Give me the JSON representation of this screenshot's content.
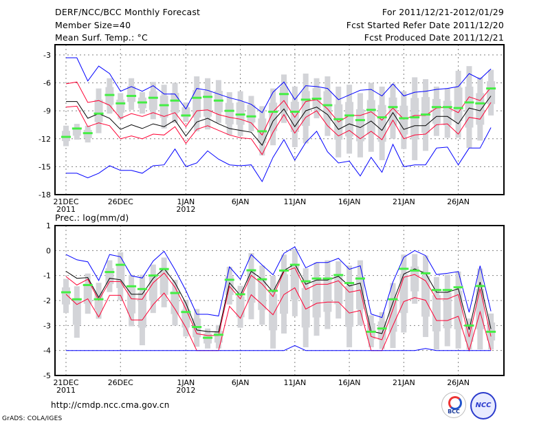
{
  "header": {
    "title": "DERF/NCC/BCC Monthly Forecast",
    "member_size": "Member Size=40",
    "variable": "Mean Surf. Temp.: °C",
    "period": "For 2011/12/21-2012/01/29",
    "started": "Fcst Started Refer Date 2011/12/20",
    "produced": "Fcst Produced Date 2011/12/21"
  },
  "footer": {
    "url": "http://cmdp.ncc.cma.gov.cn",
    "credit": "GrADS: COLA/IGES",
    "logo_bcc": "BCC",
    "logo_ncc": "NCC"
  },
  "colors": {
    "envelope": "#0000ff",
    "spread": "#ff0033",
    "mean": "#000000",
    "member_mean": "#44ee44",
    "box": "#d3d4d8",
    "grid": "#808080"
  },
  "chart_data": [
    {
      "type": "line",
      "title": "Mean Surf. Temp.: °C",
      "xlabel": "",
      "ylabel": "",
      "x_days": 40,
      "xticks": [
        {
          "day": 0,
          "label": "21DEC",
          "sub": "2011"
        },
        {
          "day": 5,
          "label": "26DEC"
        },
        {
          "day": 11,
          "label": "1JAN",
          "sub": "2012"
        },
        {
          "day": 16,
          "label": "6JAN"
        },
        {
          "day": 21,
          "label": "11JAN"
        },
        {
          "day": 26,
          "label": "16JAN"
        },
        {
          "day": 31,
          "label": "21JAN"
        },
        {
          "day": 36,
          "label": "26JAN"
        }
      ],
      "yticks": [
        -3,
        -6,
        -9,
        -12,
        -15,
        -18
      ],
      "ylim": [
        -18,
        -1.9
      ],
      "grid": true,
      "series": [
        {
          "name": "max",
          "color": "#0000ff",
          "values": [
            -3.3,
            -3.3,
            -5.8,
            -4.2,
            -5.0,
            -6.9,
            -6.4,
            -6.9,
            -6.3,
            -7.2,
            -7.2,
            -8.8,
            -6.6,
            -6.8,
            -7.2,
            -7.6,
            -7.9,
            -8.3,
            -9.2,
            -7.0,
            -5.9,
            -7.8,
            -6.3,
            -6.4,
            -6.6,
            -7.8,
            -7.3,
            -6.8,
            -6.7,
            -7.4,
            -6.1,
            -7.4,
            -7.0,
            -6.9,
            -6.7,
            -6.6,
            -6.4,
            -5.0,
            -5.6,
            -4.5
          ]
        },
        {
          "name": "upper",
          "color": "#ff0033",
          "values": [
            -6.1,
            -5.9,
            -8.1,
            -7.9,
            -8.4,
            -9.8,
            -9.3,
            -9.6,
            -9.2,
            -9.6,
            -9.2,
            -10.7,
            -9.0,
            -8.9,
            -9.4,
            -9.7,
            -9.9,
            -10.3,
            -11.6,
            -9.1,
            -7.9,
            -9.7,
            -8.0,
            -7.8,
            -8.8,
            -10.2,
            -9.5,
            -9.5,
            -9.1,
            -10.0,
            -8.7,
            -9.9,
            -9.5,
            -9.5,
            -8.7,
            -8.6,
            -9.2,
            -7.5,
            -7.9,
            -6.5
          ]
        },
        {
          "name": "mean",
          "color": "#000000",
          "values": [
            -8.0,
            -8.0,
            -9.8,
            -9.3,
            -9.8,
            -11.0,
            -10.5,
            -10.9,
            -10.4,
            -10.7,
            -10.0,
            -11.7,
            -10.2,
            -9.8,
            -10.4,
            -10.9,
            -11.1,
            -11.3,
            -12.7,
            -10.1,
            -8.8,
            -10.7,
            -9.0,
            -8.6,
            -9.4,
            -11.0,
            -10.4,
            -10.8,
            -10.1,
            -11.1,
            -9.2,
            -11.0,
            -10.6,
            -10.6,
            -9.6,
            -9.6,
            -10.4,
            -8.7,
            -9.0,
            -7.4
          ]
        },
        {
          "name": "lower",
          "color": "#ff0033",
          "values": [
            -8.6,
            -8.5,
            -10.7,
            -10.3,
            -10.6,
            -12.0,
            -11.7,
            -12.0,
            -11.5,
            -11.6,
            -10.7,
            -12.5,
            -11.0,
            -10.6,
            -11.1,
            -11.6,
            -11.9,
            -12.0,
            -13.7,
            -11.3,
            -9.4,
            -11.4,
            -9.7,
            -9.0,
            -10.6,
            -11.7,
            -11.1,
            -12.0,
            -11.2,
            -12.1,
            -10.0,
            -12.0,
            -11.6,
            -11.5,
            -10.5,
            -10.4,
            -11.5,
            -9.7,
            -9.9,
            -8.1
          ]
        },
        {
          "name": "min",
          "color": "#0000ff",
          "values": [
            -15.7,
            -15.7,
            -16.2,
            -15.7,
            -14.9,
            -15.4,
            -15.4,
            -15.7,
            -14.9,
            -14.8,
            -13.1,
            -15.0,
            -14.6,
            -13.3,
            -14.2,
            -14.8,
            -14.9,
            -14.8,
            -16.6,
            -14.0,
            -12.1,
            -14.3,
            -12.4,
            -11.2,
            -13.4,
            -14.6,
            -14.4,
            -16.0,
            -14.0,
            -15.6,
            -12.6,
            -15.0,
            -14.8,
            -14.8,
            -13.0,
            -12.9,
            -14.8,
            -13.0,
            -13.0,
            -10.8
          ]
        }
      ],
      "marks": [
        -11.8,
        -10.9,
        -11.4,
        -9.3,
        -7.3,
        -8.2,
        -7.4,
        -8.1,
        -7.6,
        -8.4,
        -7.9,
        -9.5,
        -7.6,
        -7.5,
        -7.9,
        -9.0,
        -9.4,
        -9.6,
        -11.2,
        -9.1,
        -7.2,
        -9.1,
        -7.8,
        -7.7,
        -8.4,
        -9.9,
        -9.5,
        -10.0,
        -8.9,
        -9.7,
        -8.6,
        -9.8,
        -9.7,
        -9.4,
        -8.6,
        -8.6,
        -8.7,
        -8.1,
        -8.2,
        -6.6
      ],
      "range_high": [
        -10.6,
        -10.4,
        -10.6,
        -6.6,
        -5.5,
        -7.1,
        -5.5,
        -7.0,
        -5.9,
        -6.2,
        -6.0,
        -8.1,
        -5.3,
        -5.5,
        -5.7,
        -7.0,
        -6.9,
        -7.4,
        -8.5,
        -6.6,
        -5.1,
        -6.4,
        -5.0,
        -5.5,
        -5.3,
        -6.4,
        -6.2,
        -7.1,
        -6.0,
        -6.4,
        -6.1,
        -6.9,
        -5.4,
        -5.6,
        -6.4,
        -6.6,
        -4.7,
        -4.2,
        -5.4,
        -4.6
      ],
      "range_low": [
        -12.8,
        -12.1,
        -12.4,
        -11.4,
        -9.3,
        -9.9,
        -8.9,
        -9.3,
        -9.9,
        -10.9,
        -10.3,
        -10.2,
        -11.2,
        -11.0,
        -10.3,
        -11.6,
        -11.7,
        -11.2,
        -13.8,
        -12.7,
        -10.3,
        -12.9,
        -12.5,
        -9.8,
        -11.7,
        -14.0,
        -13.6,
        -14.0,
        -13.4,
        -14.3,
        -12.0,
        -13.1,
        -14.3,
        -13.3,
        -11.7,
        -11.9,
        -11.9,
        -13.0,
        -12.2,
        -9.5
      ]
    },
    {
      "type": "line",
      "title": "Prec.: log(mm/d)",
      "xlabel": "",
      "ylabel": "",
      "x_days": 40,
      "xticks": [
        {
          "day": 0,
          "label": "21DEC",
          "sub": "2011"
        },
        {
          "day": 5,
          "label": "26DEC"
        },
        {
          "day": 11,
          "label": "1JAN",
          "sub": "2012"
        },
        {
          "day": 16,
          "label": "6JAN"
        },
        {
          "day": 21,
          "label": "11JAN"
        },
        {
          "day": 26,
          "label": "16JAN"
        },
        {
          "day": 31,
          "label": "21JAN"
        },
        {
          "day": 36,
          "label": "26JAN"
        }
      ],
      "yticks": [
        1,
        0,
        -1,
        -2,
        -3,
        -4,
        -5
      ],
      "ylim": [
        -5,
        1
      ],
      "grid": true,
      "series": [
        {
          "name": "max",
          "color": "#0000ff",
          "values": [
            -0.16,
            -0.37,
            -0.45,
            -1.2,
            -0.16,
            -0.25,
            -1.01,
            -1.1,
            -0.42,
            -0.03,
            -0.77,
            -1.6,
            -2.55,
            -2.55,
            -2.62,
            -0.65,
            -1.15,
            -0.16,
            -0.58,
            -0.97,
            -0.11,
            0.15,
            -0.69,
            -0.48,
            -0.48,
            -0.31,
            -0.75,
            -0.61,
            -2.54,
            -2.68,
            -1.26,
            -0.27,
            0.0,
            -0.2,
            -0.96,
            -0.91,
            -0.84,
            -2.47,
            -0.61,
            -2.43
          ]
        },
        {
          "name": "upper",
          "color": "#ff0033",
          "values": [
            -1.04,
            -1.38,
            -1.15,
            -1.99,
            -1.24,
            -1.24,
            -1.93,
            -1.95,
            -1.29,
            -0.9,
            -1.47,
            -2.34,
            -3.33,
            -3.4,
            -3.4,
            -1.43,
            -1.93,
            -0.99,
            -1.34,
            -1.84,
            -0.84,
            -0.69,
            -1.56,
            -1.35,
            -1.35,
            -1.21,
            -1.67,
            -1.58,
            -3.44,
            -3.57,
            -2.36,
            -1.07,
            -0.96,
            -1.21,
            -1.94,
            -1.94,
            -1.76,
            -3.46,
            -1.53,
            -3.44
          ]
        },
        {
          "name": "mean",
          "color": "#000000",
          "values": [
            -0.83,
            -1.11,
            -1.08,
            -1.88,
            -1.11,
            -1.17,
            -1.75,
            -1.75,
            -1.11,
            -0.72,
            -1.29,
            -2.11,
            -3.18,
            -3.24,
            -3.26,
            -1.29,
            -1.79,
            -0.83,
            -1.15,
            -1.66,
            -0.8,
            -0.54,
            -1.35,
            -1.18,
            -1.18,
            -1.03,
            -1.42,
            -1.3,
            -3.23,
            -3.32,
            -2.08,
            -0.94,
            -0.73,
            -0.91,
            -1.67,
            -1.67,
            -1.53,
            -3.17,
            -1.26,
            -3.14
          ]
        },
        {
          "name": "lower",
          "color": "#ff0033",
          "values": [
            -1.75,
            -2.16,
            -1.93,
            -2.66,
            -1.79,
            -1.79,
            -2.78,
            -2.78,
            -2.16,
            -1.7,
            -2.34,
            -3.08,
            -4,
            -4,
            -4,
            -2.23,
            -2.71,
            -1.77,
            -2.16,
            -2.57,
            -1.76,
            -1.49,
            -2.34,
            -2.11,
            -2.06,
            -2.06,
            -2.5,
            -2.4,
            -4,
            -4,
            -3.0,
            -2.04,
            -1.88,
            -1.99,
            -2.8,
            -2.8,
            -2.63,
            -4,
            -2.45,
            -4
          ]
        },
        {
          "name": "min",
          "color": "#0000ff",
          "values": [
            -4,
            -4,
            -4,
            -4,
            -4,
            -4,
            -4,
            -4,
            -4,
            -4,
            -4,
            -4,
            -4,
            -4,
            -4,
            -4,
            -4,
            -4,
            -4,
            -4,
            -4,
            -3.8,
            -4,
            -4,
            -4,
            -4,
            -4,
            -4,
            -4,
            -4,
            -4,
            -4,
            -4,
            -3.92,
            -4,
            -4,
            -4,
            -4,
            -4,
            -4
          ]
        }
      ],
      "marks": [
        -1.67,
        -1.95,
        -1.38,
        -1.95,
        -0.86,
        -0.57,
        -1.43,
        -1.54,
        -1.0,
        -0.74,
        -1.7,
        -2.46,
        -3.06,
        -3.49,
        -3.37,
        -1.17,
        -1.75,
        -0.79,
        -1.15,
        -1.61,
        -0.8,
        -0.57,
        -1.23,
        -1.12,
        -1.12,
        -0.98,
        -1.3,
        -1.12,
        -3.25,
        -3.12,
        -1.95,
        -0.73,
        -0.8,
        -0.91,
        -1.58,
        -1.58,
        -1.47,
        -3.0,
        -1.42,
        -3.25
      ],
      "range_high": [
        -1.13,
        -1.43,
        -0.92,
        -1.29,
        -0.39,
        -0.07,
        -0.97,
        -0.97,
        -0.56,
        -0.28,
        -1.17,
        -2.0,
        -2.34,
        -3.12,
        -2.98,
        -0.65,
        -1.41,
        -0.1,
        -0.6,
        -1.01,
        -0.16,
        0.07,
        -0.71,
        -0.48,
        -0.39,
        -0.43,
        -0.6,
        -0.39,
        -2.59,
        -2.47,
        -1.3,
        -0.16,
        -0.14,
        -0.2,
        -1.06,
        -0.96,
        -0.84,
        -2.72,
        -0.72,
        -2.52
      ],
      "range_low": [
        -2.5,
        -3.49,
        -2.53,
        -2.73,
        -1.66,
        -1.98,
        -3.03,
        -3.79,
        -2.5,
        -2.27,
        -3.0,
        -3.44,
        -3.85,
        -3.92,
        -3.92,
        -2.16,
        -3.09,
        -2.75,
        -2.97,
        -3.92,
        -3.32,
        -2.63,
        -3.87,
        -3.41,
        -3.14,
        -2.72,
        -3.87,
        -3.0,
        -3.87,
        -3.94,
        -3.9,
        -3.28,
        -2.13,
        -3.46,
        -3.96,
        -3.83,
        -3.92,
        -3.96,
        -3.96,
        -3.96
      ]
    }
  ]
}
